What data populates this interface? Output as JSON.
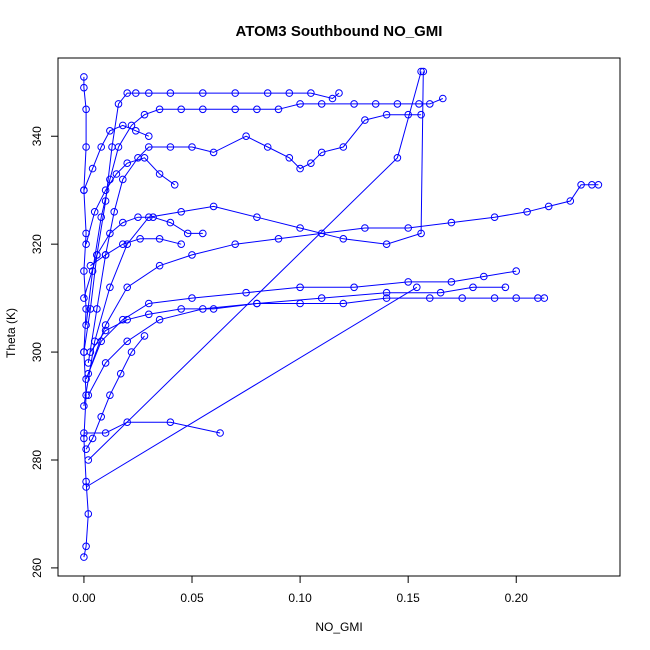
{
  "chart_data": {
    "type": "scatter",
    "title": "ATOM3 Southbound NO_GMI",
    "xlabel": "NO_GMI",
    "ylabel": "Theta (K)",
    "xlim": [
      -0.012,
      0.248
    ],
    "ylim": [
      258.5,
      354.5
    ],
    "xticks": [
      0.0,
      0.05,
      0.1,
      0.15,
      0.2
    ],
    "xtick_labels": [
      "0.00",
      "0.05",
      "0.10",
      "0.15",
      "0.20"
    ],
    "yticks": [
      260,
      280,
      300,
      320,
      340
    ],
    "ytick_labels": [
      "260",
      "280",
      "300",
      "320",
      "340"
    ],
    "grid": false,
    "legend": "none",
    "marker": "open-circle",
    "connect_points": true,
    "color": "#0000ff",
    "series": [
      {
        "x": [
          0.0,
          0.0,
          0.001,
          0.001,
          0.0,
          0.001,
          0.0,
          0.001,
          0.0,
          0.001,
          0.0,
          0.001,
          0.002,
          0.001,
          0.0
        ],
        "y": [
          351,
          349,
          345,
          338,
          330,
          322,
          315,
          308,
          300,
          292,
          284,
          276,
          270,
          264,
          262
        ]
      },
      {
        "x": [
          0.0,
          0.003,
          0.006,
          0.01,
          0.013,
          0.016,
          0.02,
          0.024,
          0.03,
          0.04,
          0.055,
          0.07,
          0.085,
          0.095,
          0.105,
          0.115,
          0.118
        ],
        "y": [
          300,
          308,
          318,
          328,
          338,
          346,
          348,
          348,
          348,
          348,
          348,
          348,
          348,
          348,
          348,
          347,
          348
        ]
      },
      {
        "x": [
          0.001,
          0.004,
          0.008,
          0.012,
          0.016,
          0.022,
          0.028,
          0.035,
          0.045,
          0.055,
          0.07,
          0.08,
          0.09,
          0.1,
          0.11,
          0.125,
          0.135,
          0.145,
          0.155,
          0.16,
          0.166
        ],
        "y": [
          305,
          315,
          325,
          332,
          338,
          342,
          344,
          345,
          345,
          345,
          345,
          345,
          345,
          346,
          346,
          346,
          346,
          346,
          346,
          346,
          347
        ]
      },
      {
        "x": [
          0.002,
          0.006,
          0.01,
          0.014,
          0.018,
          0.025,
          0.03,
          0.04,
          0.05,
          0.06,
          0.075,
          0.085,
          0.095,
          0.1,
          0.105,
          0.11,
          0.12,
          0.13,
          0.14,
          0.15,
          0.156
        ],
        "y": [
          298,
          308,
          318,
          326,
          332,
          336,
          338,
          338,
          338,
          337,
          340,
          338,
          336,
          334,
          335,
          337,
          338,
          343,
          344,
          344,
          344
        ]
      },
      {
        "x": [
          0.0,
          0.005,
          0.012,
          0.02,
          0.03,
          0.045,
          0.06,
          0.08,
          0.1,
          0.12,
          0.14,
          0.156,
          0.157
        ],
        "y": [
          290,
          302,
          312,
          320,
          325,
          326,
          327,
          325,
          323,
          321,
          320,
          322,
          352
        ]
      },
      {
        "x": [
          0.002,
          0.01,
          0.02,
          0.035,
          0.05,
          0.07,
          0.09,
          0.11,
          0.13,
          0.15,
          0.17,
          0.19,
          0.205,
          0.215,
          0.225,
          0.23,
          0.235,
          0.238
        ],
        "y": [
          296,
          305,
          312,
          316,
          318,
          320,
          321,
          322,
          323,
          323,
          324,
          325,
          326,
          327,
          328,
          331,
          331,
          331
        ]
      },
      {
        "x": [
          0.003,
          0.01,
          0.02,
          0.03,
          0.045,
          0.06,
          0.08,
          0.1,
          0.12,
          0.14,
          0.16,
          0.175,
          0.19,
          0.2,
          0.21,
          0.213
        ],
        "y": [
          300,
          304,
          306,
          307,
          308,
          308,
          309,
          309,
          309,
          310,
          310,
          310,
          310,
          310,
          310,
          310
        ]
      },
      {
        "x": [
          0.001,
          0.008,
          0.018,
          0.03,
          0.05,
          0.075,
          0.1,
          0.125,
          0.15,
          0.17,
          0.185,
          0.2
        ],
        "y": [
          295,
          302,
          306,
          309,
          310,
          311,
          312,
          312,
          313,
          313,
          314,
          315
        ]
      },
      {
        "x": [
          0.002,
          0.01,
          0.02,
          0.035,
          0.055,
          0.08,
          0.11,
          0.14,
          0.165,
          0.18,
          0.195
        ],
        "y": [
          292,
          298,
          302,
          306,
          308,
          309,
          310,
          311,
          311,
          312,
          312
        ]
      },
      {
        "x": [
          0.0,
          0.01,
          0.02,
          0.04,
          0.063
        ],
        "y": [
          285,
          285,
          287,
          287,
          285
        ]
      },
      {
        "x": [
          0.001,
          0.004,
          0.008,
          0.012,
          0.017,
          0.022,
          0.028
        ],
        "y": [
          282,
          284,
          288,
          292,
          296,
          300,
          303
        ]
      },
      {
        "x": [
          0.001,
          0.154
        ],
        "y": [
          275,
          312
        ]
      },
      {
        "x": [
          0.002,
          0.145,
          0.156
        ],
        "y": [
          280,
          336,
          352
        ]
      },
      {
        "x": [
          0.0,
          0.006,
          0.012,
          0.018,
          0.025,
          0.032,
          0.04,
          0.048,
          0.055
        ],
        "y": [
          310,
          318,
          322,
          324,
          325,
          325,
          324,
          322,
          322
        ]
      },
      {
        "x": [
          0.001,
          0.005,
          0.01,
          0.015,
          0.02,
          0.028,
          0.035,
          0.042
        ],
        "y": [
          320,
          326,
          330,
          333,
          335,
          336,
          333,
          331
        ]
      },
      {
        "x": [
          0.0,
          0.004,
          0.008,
          0.012,
          0.018,
          0.024,
          0.03
        ],
        "y": [
          330,
          334,
          338,
          341,
          342,
          341,
          340
        ]
      },
      {
        "x": [
          0.003,
          0.01,
          0.018,
          0.026,
          0.035,
          0.045
        ],
        "y": [
          316,
          318,
          320,
          321,
          321,
          320
        ]
      }
    ]
  }
}
